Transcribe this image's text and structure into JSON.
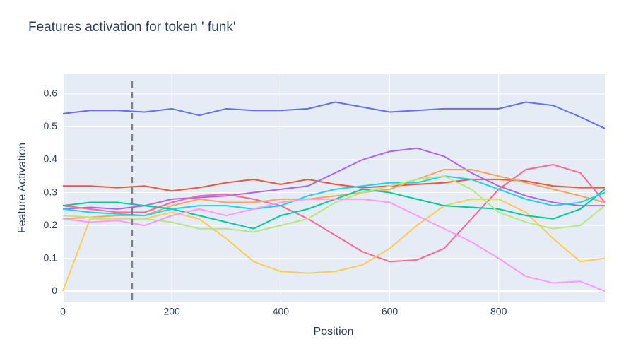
{
  "chart_data": {
    "type": "line",
    "title": "Features activation for token ' funk'",
    "x_label": "Position",
    "y_label": "Feature Activation",
    "x": [
      0,
      50,
      100,
      150,
      200,
      250,
      300,
      350,
      400,
      450,
      500,
      550,
      600,
      650,
      700,
      750,
      800,
      850,
      900,
      950,
      995
    ],
    "series": [
      {
        "color": "#636efa",
        "values": [
          0.54,
          0.55,
          0.55,
          0.545,
          0.555,
          0.535,
          0.555,
          0.55,
          0.55,
          0.555,
          0.575,
          0.56,
          0.545,
          0.55,
          0.555,
          0.555,
          0.555,
          0.575,
          0.565,
          0.53,
          0.495
        ]
      },
      {
        "color": "#EF553B",
        "values": [
          0.32,
          0.32,
          0.315,
          0.32,
          0.305,
          0.315,
          0.33,
          0.34,
          0.325,
          0.34,
          0.325,
          0.315,
          0.32,
          0.325,
          0.33,
          0.34,
          0.34,
          0.335,
          0.32,
          0.315,
          0.315
        ]
      },
      {
        "color": "#ab63fa",
        "values": [
          0.25,
          0.255,
          0.25,
          0.26,
          0.28,
          0.285,
          0.29,
          0.3,
          0.31,
          0.32,
          0.36,
          0.4,
          0.425,
          0.435,
          0.41,
          0.36,
          0.32,
          0.29,
          0.27,
          0.26,
          0.26
        ]
      },
      {
        "color": "#FF6692",
        "values": [
          0.26,
          0.25,
          0.24,
          0.24,
          0.27,
          0.29,
          0.295,
          0.28,
          0.26,
          0.22,
          0.17,
          0.12,
          0.09,
          0.095,
          0.13,
          0.22,
          0.31,
          0.37,
          0.385,
          0.36,
          0.27
        ]
      },
      {
        "color": "#FECB52",
        "values": [
          0,
          0.22,
          0.22,
          0.22,
          0.24,
          0.22,
          0.16,
          0.09,
          0.06,
          0.055,
          0.06,
          0.08,
          0.13,
          0.2,
          0.26,
          0.28,
          0.28,
          0.24,
          0.16,
          0.09,
          0.1
        ]
      },
      {
        "color": "#FFA15A",
        "values": [
          0.22,
          0.225,
          0.23,
          0.23,
          0.26,
          0.28,
          0.27,
          0.27,
          0.28,
          0.28,
          0.29,
          0.3,
          0.31,
          0.34,
          0.37,
          0.37,
          0.35,
          0.33,
          0.31,
          0.29,
          0.27
        ]
      },
      {
        "color": "#00cc96",
        "values": [
          0.26,
          0.27,
          0.27,
          0.26,
          0.25,
          0.23,
          0.21,
          0.19,
          0.23,
          0.25,
          0.28,
          0.31,
          0.3,
          0.28,
          0.26,
          0.255,
          0.25,
          0.23,
          0.22,
          0.25,
          0.31
        ]
      },
      {
        "color": "#19d3f3",
        "values": [
          0.25,
          0.24,
          0.235,
          0.23,
          0.25,
          0.26,
          0.26,
          0.25,
          0.26,
          0.29,
          0.31,
          0.32,
          0.33,
          0.33,
          0.35,
          0.34,
          0.31,
          0.28,
          0.26,
          0.27,
          0.3
        ]
      },
      {
        "color": "#B6E880",
        "values": [
          0.23,
          0.225,
          0.22,
          0.22,
          0.21,
          0.19,
          0.19,
          0.18,
          0.2,
          0.22,
          0.27,
          0.3,
          0.32,
          0.34,
          0.35,
          0.31,
          0.24,
          0.21,
          0.19,
          0.2,
          0.26
        ]
      },
      {
        "color": "#FF97FF",
        "values": [
          0.22,
          0.21,
          0.215,
          0.2,
          0.23,
          0.25,
          0.23,
          0.25,
          0.27,
          0.28,
          0.28,
          0.28,
          0.27,
          0.23,
          0.19,
          0.15,
          0.1,
          0.045,
          0.025,
          0.03,
          0
        ]
      }
    ],
    "vline": 127,
    "xlim": [
      0,
      995
    ],
    "ylim": [
      -0.034,
      0.66
    ],
    "xticks": [
      0,
      200,
      400,
      600,
      800
    ],
    "yticks": [
      0,
      0.1,
      0.2,
      0.3,
      0.4,
      0.5,
      0.6
    ],
    "grid": true
  }
}
